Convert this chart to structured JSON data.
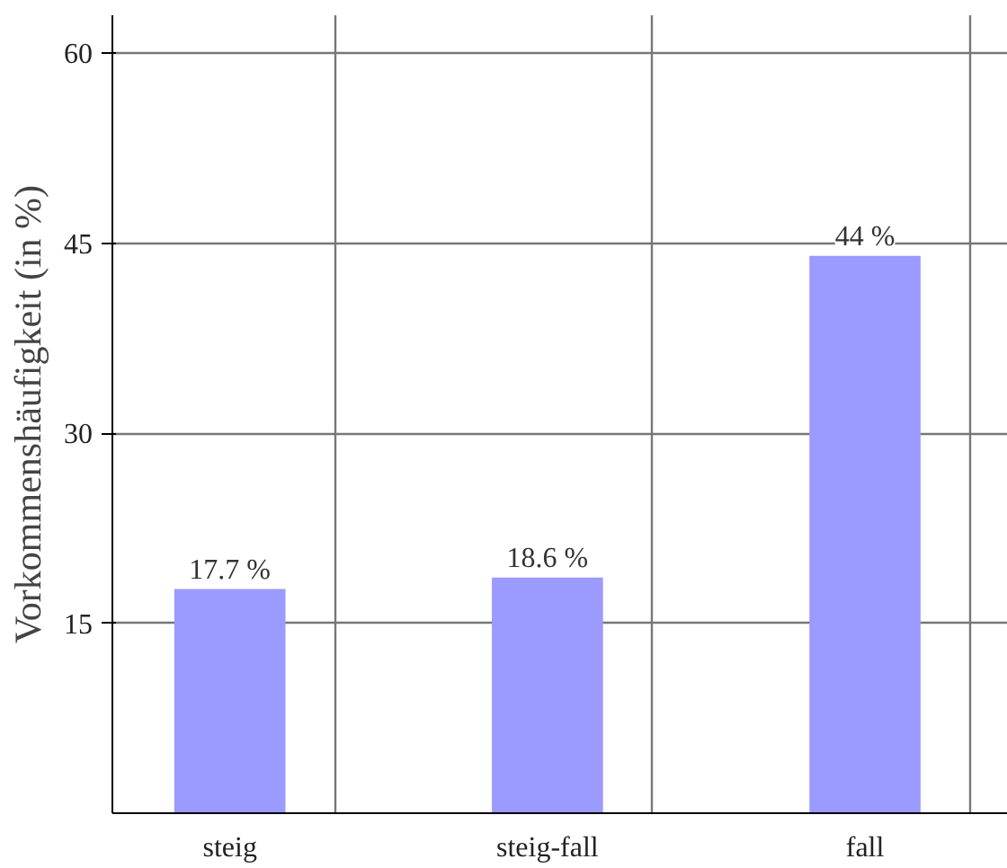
{
  "chart_data": {
    "type": "bar",
    "ylabel": "Vorkommenshäufigkeit (in %)",
    "categories": [
      "steig",
      "steig-fall",
      "fall"
    ],
    "values": [
      17.7,
      18.6,
      44
    ],
    "color": "#9a9aff",
    "value_labels": [
      "17.7 %",
      "18.6 %",
      "44 %"
    ],
    "ylim": [
      0,
      63
    ],
    "yticks": [
      15,
      30,
      45,
      60
    ],
    "grid": true
  }
}
